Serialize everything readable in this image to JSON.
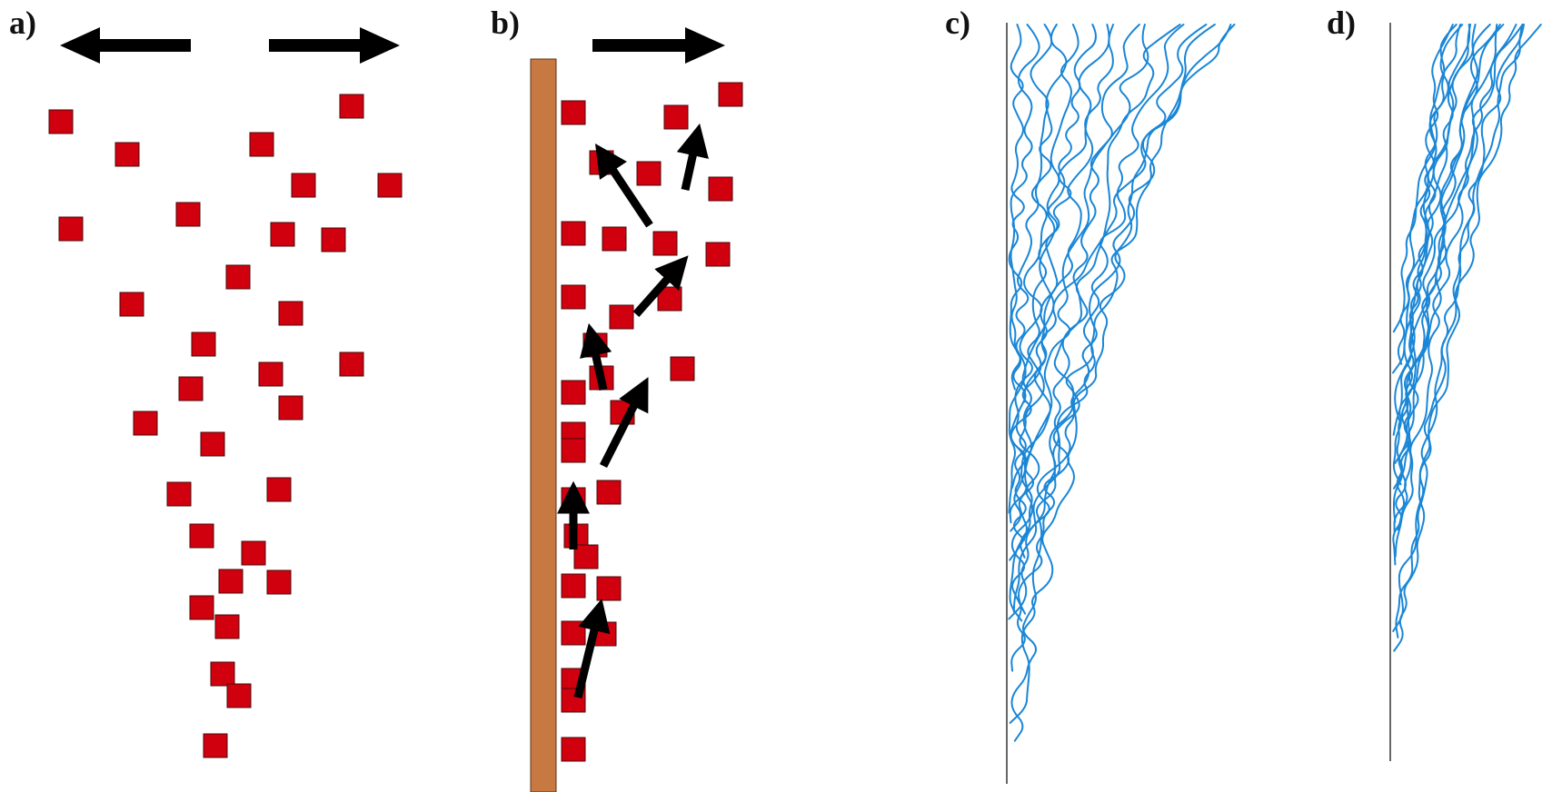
{
  "panels": [
    {
      "label": "a)"
    },
    {
      "label": "b)"
    },
    {
      "label": "c)"
    },
    {
      "label": "d)"
    }
  ],
  "colors": {
    "particle_fill": "#d0000e",
    "particle_stroke": "#4a0a0a",
    "arrow": "#000000",
    "wall": "#c87941",
    "wall_stroke": "#5a3214",
    "trajectory": "#1a86d6",
    "axis_line": "#333333"
  },
  "icons": {
    "panel_a_arrows": "double-horizontal-arrow-icon",
    "panel_b_arrow": "right-arrow-icon",
    "panel_b_particle_arrows": "motion-arrow-icon"
  }
}
